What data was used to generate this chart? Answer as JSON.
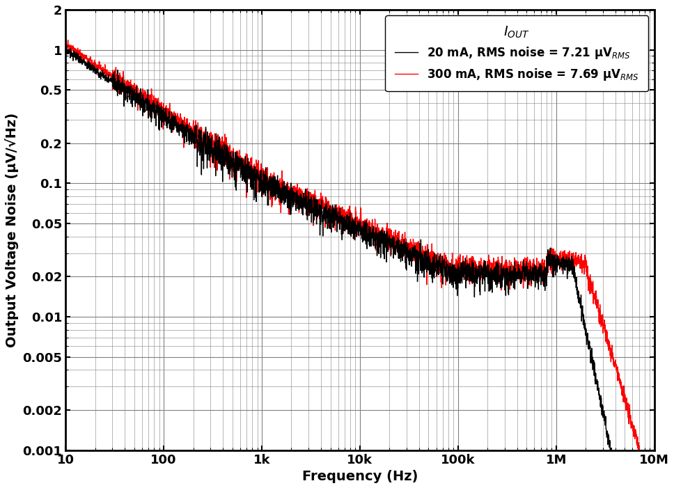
{
  "xlabel": "Frequency (Hz)",
  "ylabel": "Output Voltage Noise (μV/√Hz)",
  "xlim": [
    10,
    10000000.0
  ],
  "ylim": [
    0.001,
    2
  ],
  "legend_title": "I$_{OUT}$",
  "legend_entries": [
    "20 mA, RMS noise = 7.21 μV$_{RMS}$",
    "300 mA, RMS noise = 7.69 μV$_{RMS}$"
  ],
  "line_colors": [
    "#000000",
    "#ff0000"
  ],
  "line_width": 1.0,
  "background_color": "#ffffff",
  "grid_color": "#808080",
  "tick_label_fontsize": 13,
  "axis_label_fontsize": 14,
  "legend_fontsize": 12,
  "x_major_ticks": [
    10,
    100,
    1000,
    10000,
    100000,
    1000000,
    10000000
  ],
  "x_tick_labels": [
    "10",
    "100",
    "1k",
    "10k",
    "100k",
    "1M",
    "10M"
  ],
  "y_major_ticks": [
    0.001,
    0.002,
    0.005,
    0.01,
    0.02,
    0.05,
    0.1,
    0.2,
    0.5,
    1,
    2
  ],
  "y_tick_labels": [
    "0.001",
    "0.002",
    "0.005",
    "0.01",
    "0.02",
    "0.05",
    "0.1",
    "0.2",
    "0.5",
    "1",
    "2"
  ]
}
